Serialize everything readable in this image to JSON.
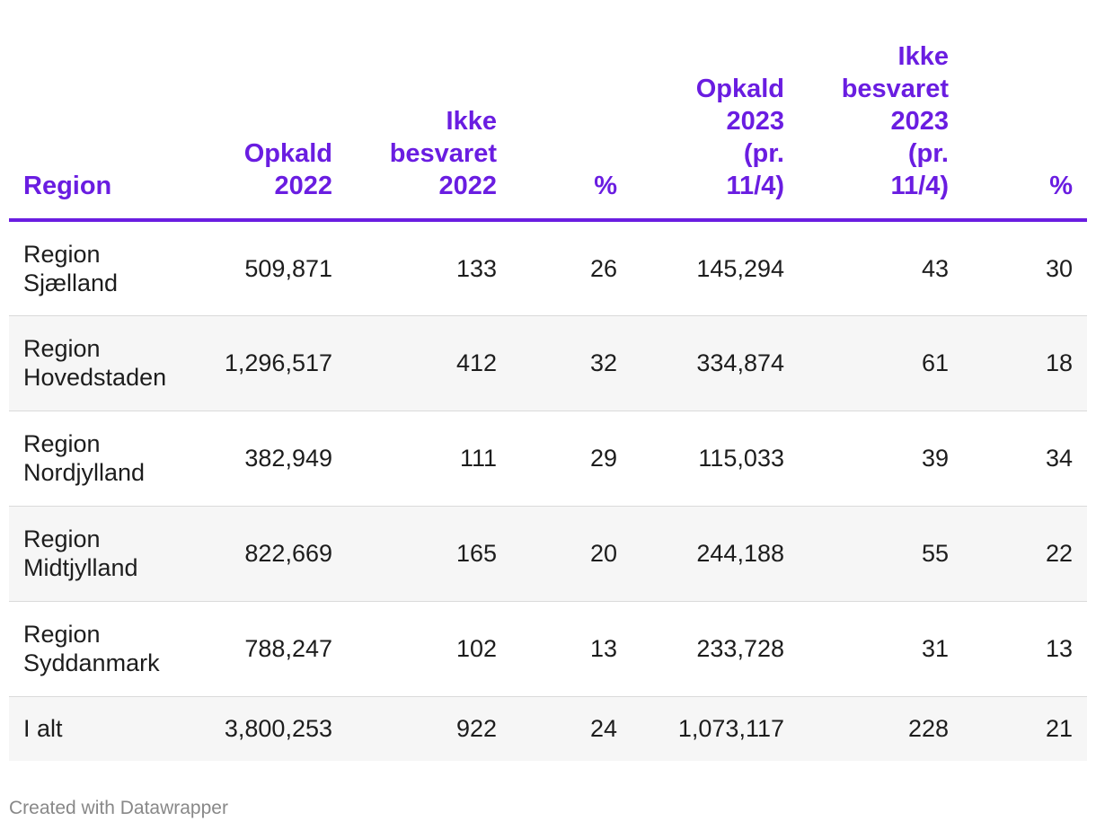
{
  "chart_data": {
    "type": "table",
    "columns": [
      "Region",
      "Opkald 2022",
      "Ikke besvaret 2022",
      "%",
      "Opkald 2023 (pr. 11/4)",
      "Ikke besvaret 2023 (pr. 11/4)",
      "%"
    ],
    "header_lines": [
      [
        "Region"
      ],
      [
        "Opkald",
        "2022"
      ],
      [
        "Ikke",
        "besvaret",
        "2022"
      ],
      [
        "%"
      ],
      [
        "Opkald",
        "2023",
        "(pr.",
        "11/4)"
      ],
      [
        "Ikke",
        "besvaret",
        "2023",
        "(pr.",
        "11/4)"
      ],
      [
        "%"
      ]
    ],
    "rows": [
      {
        "region_lines": [
          "Region",
          "Sjælland"
        ],
        "cells": [
          "509,871",
          "133",
          "26",
          "145,294",
          "43",
          "30"
        ]
      },
      {
        "region_lines": [
          "Region",
          "Hovedstaden"
        ],
        "cells": [
          "1,296,517",
          "412",
          "32",
          "334,874",
          "61",
          "18"
        ]
      },
      {
        "region_lines": [
          "Region",
          "Nordjylland"
        ],
        "cells": [
          "382,949",
          "111",
          "29",
          "115,033",
          "39",
          "34"
        ]
      },
      {
        "region_lines": [
          "Region",
          "Midtjylland"
        ],
        "cells": [
          "822,669",
          "165",
          "20",
          "244,188",
          "55",
          "22"
        ]
      },
      {
        "region_lines": [
          "Region",
          "Syddanmark"
        ],
        "cells": [
          "788,247",
          "102",
          "13",
          "233,728",
          "31",
          "13"
        ]
      },
      {
        "region_lines": [
          "I alt"
        ],
        "cells": [
          "3,800,253",
          "922",
          "24",
          "1,073,117",
          "228",
          "21"
        ]
      }
    ]
  },
  "footer": {
    "credit": "Created with Datawrapper"
  },
  "colors": {
    "accent": "#6a1de1",
    "stripe": "#f6f6f6",
    "divider": "#dadada",
    "credit": "#888888"
  }
}
